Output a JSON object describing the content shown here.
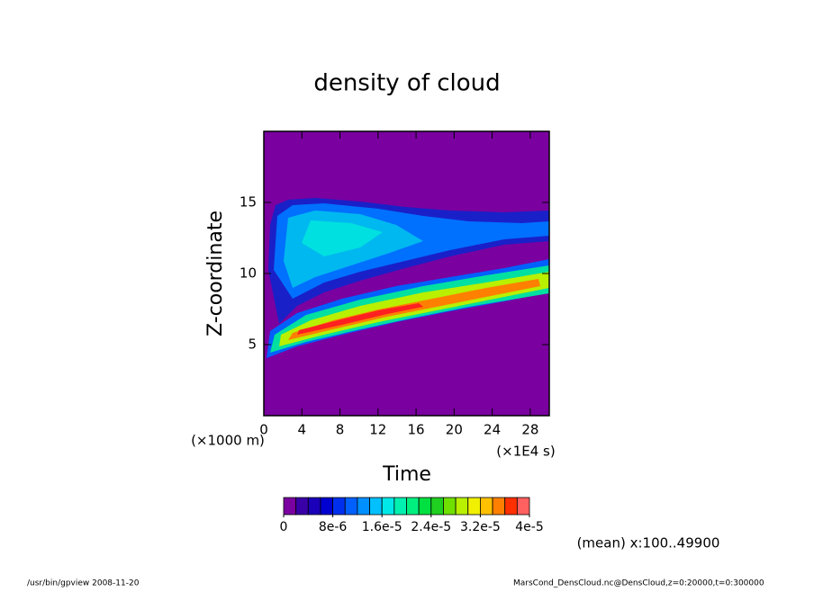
{
  "chart_data": {
    "type": "contour",
    "title": "density of cloud",
    "x_label": "Time",
    "y_label": "Z-coordinate",
    "x_unit": "(×1E4 s)",
    "y_unit": "(×1000 m)",
    "xlim": [
      0,
      30
    ],
    "xticks": [
      0,
      4,
      8,
      12,
      16,
      20,
      24,
      28
    ],
    "ylim": [
      0,
      20
    ],
    "yticks": [
      5,
      10,
      15
    ],
    "background_color": "#7a00a0",
    "colorbar": {
      "lim": [
        0,
        4e-05
      ],
      "colors": [
        "#7a00a0",
        "#3a00a8",
        "#1a00b8",
        "#0000d0",
        "#0030ee",
        "#0060ff",
        "#0090ff",
        "#00c0ff",
        "#00e8e8",
        "#00f0b0",
        "#00f080",
        "#00e040",
        "#20d020",
        "#70e000",
        "#b8f000",
        "#f0f000",
        "#ffc000",
        "#ff8000",
        "#ff3000",
        "#ff6060"
      ],
      "ticks": [
        {
          "value": 0,
          "label": "0"
        },
        {
          "value": 8e-06,
          "label": "8e-6"
        },
        {
          "value": 1.6e-05,
          "label": "1.6e-5"
        },
        {
          "value": 2.4e-05,
          "label": "2.4e-5"
        },
        {
          "value": 3.2e-05,
          "label": "3.2e-5"
        },
        {
          "value": 4e-05,
          "label": "4e-5"
        }
      ]
    },
    "note": "(mean) x:100..49900",
    "footer_left": "/usr/bin/gpview   2008-11-20",
    "footer_right": "MarsCond_DensCloud.nc@DensCloud,z=0:20000,t=0:300000"
  }
}
